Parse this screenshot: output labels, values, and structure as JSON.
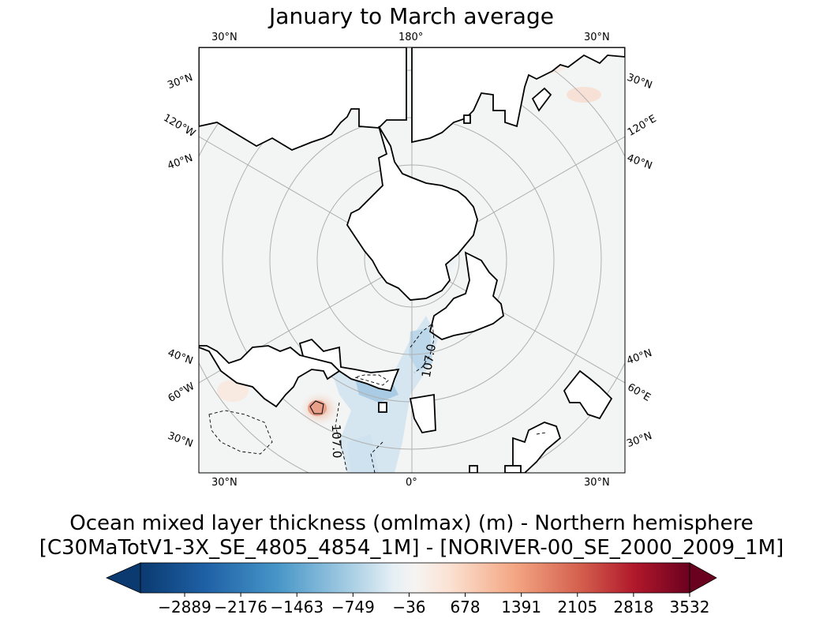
{
  "title": "January to March average",
  "map": {
    "projection": "north polar stereographic",
    "gridline_labels": {
      "top_left": "30°N",
      "top_center": "180°",
      "top_right": "30°N",
      "left_1": "30°N",
      "left_2": "120°W",
      "left_3": "40°N",
      "left_4": "40°N",
      "left_5": "60°W",
      "left_6": "30°N",
      "right_1": "30°N",
      "right_2": "120°E",
      "right_3": "40°N",
      "right_4": "40°N",
      "right_5": "60°E",
      "right_6": "30°N",
      "bottom_left": "30°N",
      "bottom_center": "0°",
      "bottom_right": "30°N"
    },
    "contour_labels": [
      "107.0",
      "107.0"
    ]
  },
  "colorbar": {
    "title_line1": "Ocean mixed layer thickness (omlmax) (m) - Northern hemisphere",
    "title_line2": "[C30MaTotV1-3X_SE_4805_4854_1M] - [NORIVER-00_SE_2000_2009_1M]",
    "ticks": [
      "−2889",
      "−2176",
      "−1463",
      "−749",
      "−36",
      "678",
      "1391",
      "2105",
      "2818",
      "3532"
    ],
    "colormap": "RdBu_r",
    "extend": "both"
  }
}
